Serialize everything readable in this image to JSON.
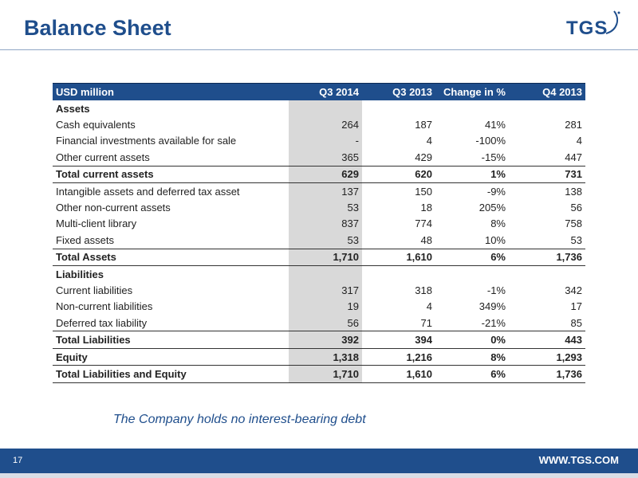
{
  "header": {
    "title": "Balance Sheet",
    "logo_text": "TGS"
  },
  "table": {
    "columns": [
      "USD million",
      "Q3 2014",
      "Q3 2013",
      "Change in %",
      "Q4 2013"
    ],
    "rows": [
      {
        "label": "Assets",
        "cells": [
          "",
          "",
          "",
          ""
        ]
      },
      {
        "label": "Cash equivalents",
        "cells": [
          "264",
          "187",
          "41%",
          "281"
        ]
      },
      {
        "label": "Financial investments available for sale",
        "cells": [
          "-",
          "4",
          "-100%",
          "4"
        ]
      },
      {
        "label": "Other current assets",
        "cells": [
          "365",
          "429",
          "-15%",
          "447"
        ]
      },
      {
        "label": "Total current assets",
        "cells": [
          "629",
          "620",
          "1%",
          "731"
        ]
      },
      {
        "label": "Intangible assets and deferred tax asset",
        "cells": [
          "137",
          "150",
          "-9%",
          "138"
        ]
      },
      {
        "label": "Other non-current assets",
        "cells": [
          "53",
          "18",
          "205%",
          "56"
        ]
      },
      {
        "label": "Multi-client library",
        "cells": [
          "837",
          "774",
          "8%",
          "758"
        ]
      },
      {
        "label": "Fixed assets",
        "cells": [
          "53",
          "48",
          "10%",
          "53"
        ]
      },
      {
        "label": "Total Assets",
        "cells": [
          "1,710",
          "1,610",
          "6%",
          "1,736"
        ]
      },
      {
        "label": "Liabilities",
        "cells": [
          "",
          "",
          "",
          ""
        ]
      },
      {
        "label": "Current liabilities",
        "cells": [
          "317",
          "318",
          "-1%",
          "342"
        ]
      },
      {
        "label": "Non-current liabilities",
        "cells": [
          "19",
          "4",
          "349%",
          "17"
        ]
      },
      {
        "label": "Deferred tax liability",
        "cells": [
          "56",
          "71",
          "-21%",
          "85"
        ]
      },
      {
        "label": "Total Liabilities",
        "cells": [
          "392",
          "394",
          "0%",
          "443"
        ]
      },
      {
        "label": "Equity",
        "cells": [
          "1,318",
          "1,216",
          "8%",
          "1,293"
        ]
      },
      {
        "label": "Total Liabilities and Equity",
        "cells": [
          "1,710",
          "1,610",
          "6%",
          "1,736"
        ]
      }
    ]
  },
  "note": "The Company holds no interest-bearing debt",
  "footer": {
    "page_number": "17",
    "url": "WWW.TGS.COM"
  },
  "colors": {
    "brand_blue": "#1f4e8c",
    "highlight_gray": "#d9d9d9"
  }
}
